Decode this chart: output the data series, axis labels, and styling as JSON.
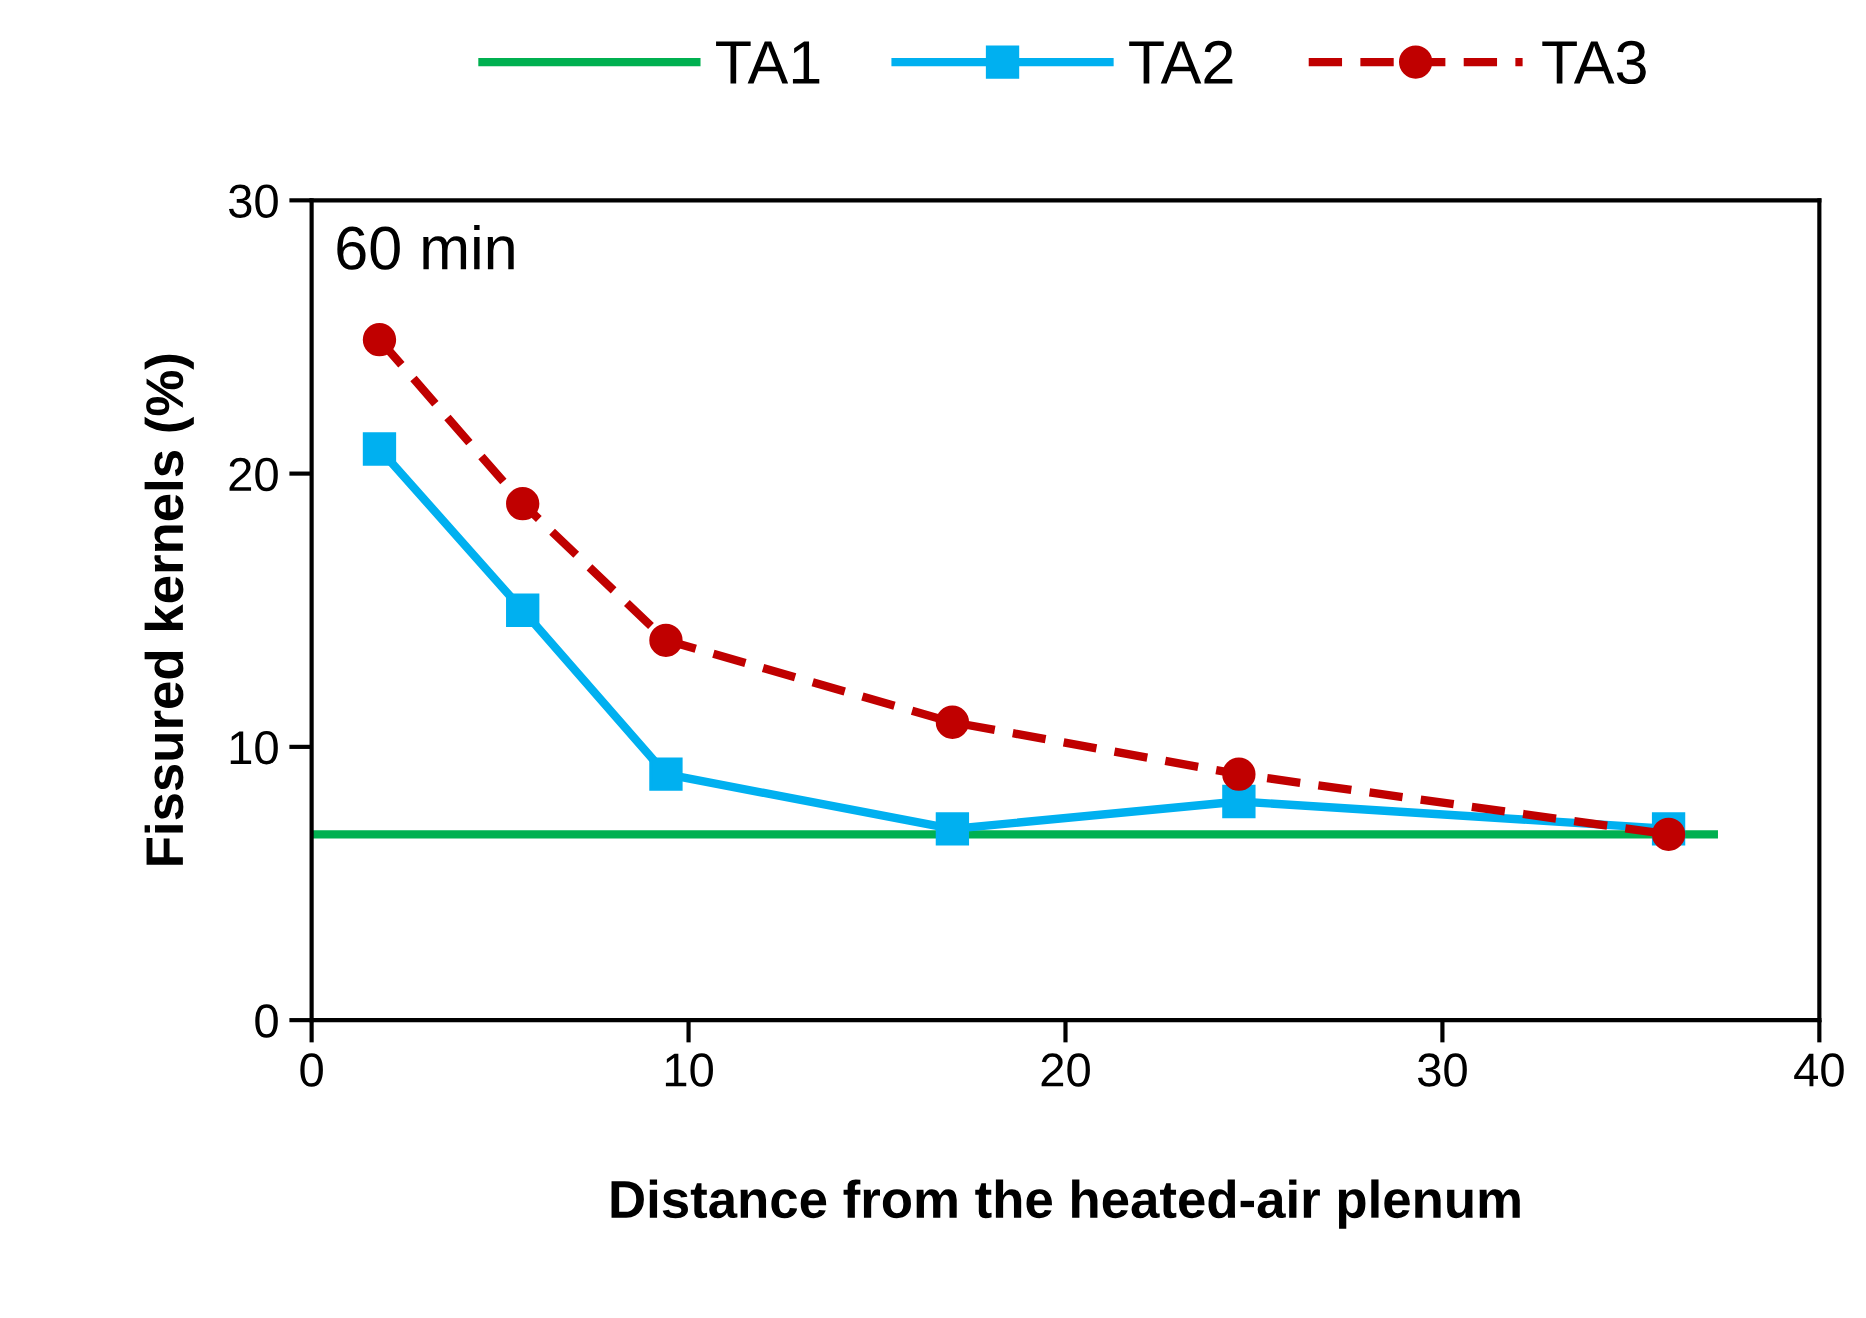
{
  "chart_data": {
    "type": "line",
    "xlabel": "Distance from the heated-air plenum",
    "ylabel": "Fissured kernels (%)",
    "annotations": [
      "60 min"
    ],
    "xlim": [
      0,
      40
    ],
    "xticks": [
      0,
      10,
      20,
      30,
      40
    ],
    "ylim": [
      0,
      30
    ],
    "yticks": [
      0,
      10,
      20,
      30
    ],
    "grid": false,
    "legend": "top",
    "series": [
      {
        "name": "TA1",
        "color": "#00b050",
        "x": [
          0,
          37.2
        ],
        "values": [
          6.8,
          6.8
        ],
        "marker": "none",
        "line_style": "solid"
      },
      {
        "name": "TA2",
        "color": "#00b0f0",
        "x": [
          1.8,
          5.6,
          9.4,
          17.0,
          24.6,
          36.0
        ],
        "values": [
          20.9,
          15.0,
          9.0,
          7.0,
          8.0,
          7.0
        ],
        "marker": "square",
        "line_style": "solid"
      },
      {
        "name": "TA3",
        "color": "#c00000",
        "x": [
          1.8,
          5.6,
          9.4,
          17.0,
          24.6,
          36.0
        ],
        "values": [
          24.9,
          18.9,
          13.9,
          10.9,
          9.0,
          6.8
        ],
        "marker": "circle",
        "line_style": "dashed"
      }
    ]
  }
}
